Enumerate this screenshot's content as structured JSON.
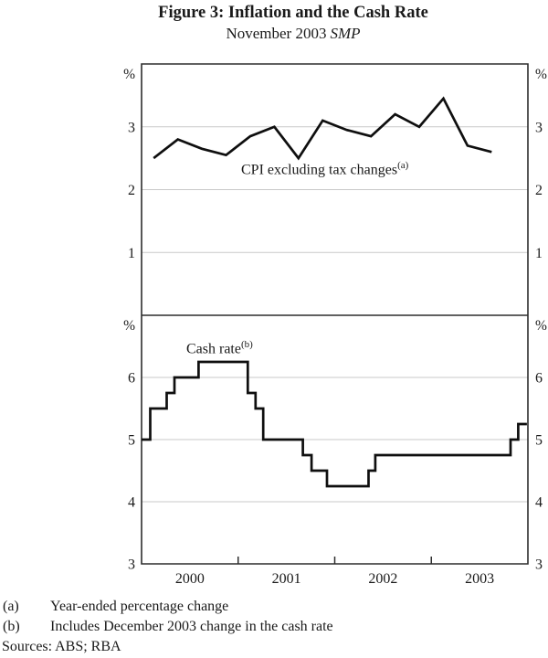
{
  "title": "Figure 3: Inflation and the Cash Rate",
  "subtitle": {
    "text": "November 2003",
    "italic": "SMP"
  },
  "footnotes": [
    {
      "marker": "(a)",
      "text": "Year-ended percentage change"
    },
    {
      "marker": "(b)",
      "text": "Includes December 2003 change in the cash rate"
    }
  ],
  "sources": {
    "label": "Sources:",
    "text": "ABS; RBA"
  },
  "x_axis": {
    "xlim": [
      2000,
      2004
    ],
    "tick_years": [
      2001,
      2002,
      2003
    ],
    "year_labels": [
      "2000",
      "2001",
      "2002",
      "2003"
    ]
  },
  "chart_data": [
    {
      "type": "line",
      "panel": "top",
      "label": "CPI excluding tax changes",
      "label_footnote_marker": "(a)",
      "unit": "%",
      "ylabel": "Year-ended percentage change (%)",
      "ylim": [
        0,
        4
      ],
      "yticks": [
        1,
        2,
        3
      ],
      "grid": true,
      "quarters": [
        "Mar 2000",
        "Jun 2000",
        "Sep 2000",
        "Dec 2000",
        "Mar 2001",
        "Jun 2001",
        "Sep 2001",
        "Dec 2001",
        "Mar 2002",
        "Jun 2002",
        "Sep 2002",
        "Dec 2002",
        "Mar 2003",
        "Jun 2003",
        "Sep 2003"
      ],
      "x_years": [
        2000.125,
        2000.375,
        2000.625,
        2000.875,
        2001.125,
        2001.375,
        2001.625,
        2001.875,
        2002.125,
        2002.375,
        2002.625,
        2002.875,
        2003.125,
        2003.375,
        2003.625
      ],
      "values": [
        2.5,
        2.8,
        2.65,
        2.55,
        2.85,
        3.0,
        2.5,
        3.1,
        2.95,
        2.85,
        3.2,
        3.0,
        3.45,
        2.7,
        2.6
      ]
    },
    {
      "type": "step-line",
      "panel": "bottom",
      "label": "Cash rate",
      "label_footnote_marker": "(b)",
      "unit": "%",
      "ylabel": "Cash rate (%)",
      "ylim": [
        3,
        7
      ],
      "yticks": [
        3,
        4,
        5,
        6
      ],
      "grid": true,
      "steps": [
        {
          "date": "Jan 2000",
          "x": 2000.0,
          "rate": 5.0
        },
        {
          "date": "Feb 2000",
          "x": 2000.09,
          "rate": 5.5
        },
        {
          "date": "Apr 2000",
          "x": 2000.26,
          "rate": 5.75
        },
        {
          "date": "May 2000",
          "x": 2000.34,
          "rate": 6.0
        },
        {
          "date": "Aug 2000",
          "x": 2000.59,
          "rate": 6.25
        },
        {
          "date": "Feb 2001",
          "x": 2001.1,
          "rate": 5.75
        },
        {
          "date": "Mar 2001",
          "x": 2001.18,
          "rate": 5.5
        },
        {
          "date": "Apr 2001",
          "x": 2001.26,
          "rate": 5.0
        },
        {
          "date": "Sep 2001",
          "x": 2001.67,
          "rate": 4.75
        },
        {
          "date": "Oct 2001",
          "x": 2001.76,
          "rate": 4.5
        },
        {
          "date": "Dec 2001",
          "x": 2001.92,
          "rate": 4.25
        },
        {
          "date": "May 2002",
          "x": 2002.35,
          "rate": 4.5
        },
        {
          "date": "Jun 2002",
          "x": 2002.42,
          "rate": 4.75
        },
        {
          "date": "Nov 2003",
          "x": 2003.82,
          "rate": 5.0
        },
        {
          "date": "Dec 2003",
          "x": 2003.9,
          "rate": 5.25
        }
      ],
      "x_end": 2003.99
    }
  ]
}
